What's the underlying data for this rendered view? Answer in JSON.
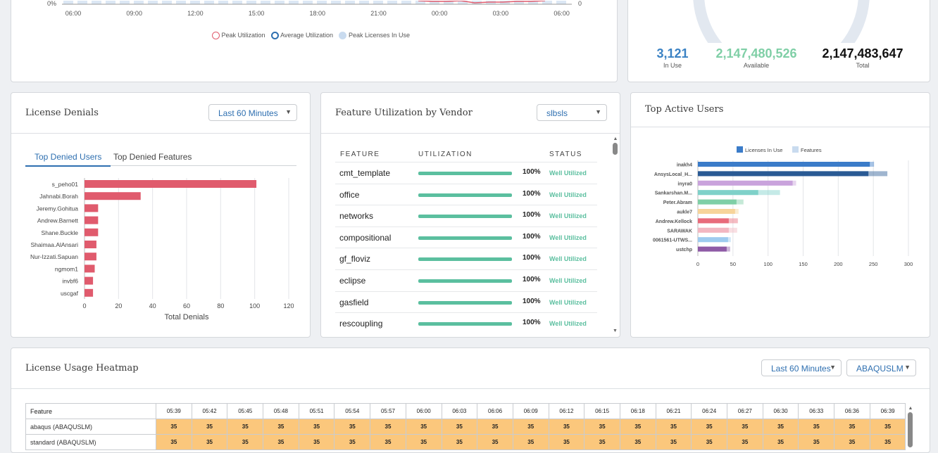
{
  "colors": {
    "accent": "#2e6fb0",
    "red": "#e05b6d",
    "green": "#5bbf9f",
    "orange": "#fbc77c",
    "light_blue": "#c9dbef"
  },
  "top_chart": {
    "y_tick": "0%",
    "y2_tick": "0",
    "x_ticks": [
      "06:00",
      "09:00",
      "12:00",
      "15:00",
      "18:00",
      "21:00",
      "00:00",
      "03:00",
      "06:00"
    ],
    "legend": [
      "Peak Utilization",
      "Average Utilization",
      "Peak Licenses In Use"
    ]
  },
  "summary": {
    "in_use_value": "3,121",
    "in_use_label": "In Use",
    "available_value": "2,147,480,526",
    "available_label": "Available",
    "total_value": "2,147,483,647",
    "total_label": "Total"
  },
  "denials": {
    "title": "License Denials",
    "range": "Last 60 Minutes",
    "tabs": [
      "Top Denied Users",
      "Top Denied Features"
    ],
    "xlabel": "Total Denials"
  },
  "vendor": {
    "title": "Feature Utilization by Vendor",
    "selected": "slbsls",
    "headers": {
      "feature": "FEATURE",
      "utilization": "UTILIZATION",
      "status": "STATUS"
    },
    "rows": [
      {
        "feature": "cmt_template",
        "pct": "100%",
        "status": "Well Utilized"
      },
      {
        "feature": "office",
        "pct": "100%",
        "status": "Well Utilized"
      },
      {
        "feature": "networks",
        "pct": "100%",
        "status": "Well Utilized"
      },
      {
        "feature": "compositional",
        "pct": "100%",
        "status": "Well Utilized"
      },
      {
        "feature": "gf_floviz",
        "pct": "100%",
        "status": "Well Utilized"
      },
      {
        "feature": "eclipse",
        "pct": "100%",
        "status": "Well Utilized"
      },
      {
        "feature": "gasfield",
        "pct": "100%",
        "status": "Well Utilized"
      },
      {
        "feature": "rescoupling",
        "pct": "100%",
        "status": "Well Utilized"
      }
    ]
  },
  "active_users": {
    "title": "Top Active Users"
  },
  "heatmap": {
    "title": "License Usage Heatmap",
    "range": "Last 60 Minutes",
    "vendor": "ABAQUSLM",
    "feature_header": "Feature",
    "times": [
      "05:39",
      "05:42",
      "05:45",
      "05:48",
      "05:51",
      "05:54",
      "05:57",
      "06:00",
      "06:03",
      "06:06",
      "06:09",
      "06:12",
      "06:15",
      "06:18",
      "06:21",
      "06:24",
      "06:27",
      "06:30",
      "06:33",
      "06:36",
      "06:39"
    ],
    "rows": [
      {
        "feature": "abaqus (ABAQUSLM)",
        "value": "35"
      },
      {
        "feature": "standard (ABAQUSLM)",
        "value": "35"
      }
    ]
  },
  "chart_data": [
    {
      "type": "bar",
      "orientation": "horizontal",
      "categories": [
        "s_peho01",
        "Jahnabi.Borah",
        "Jeremy.Gohitua",
        "Andrew.Barnett",
        "Shane.Buckle",
        "Shaimaa.AlAnsari",
        "Nur-Izzati.Sapuan",
        "ngmom1",
        "invbf6",
        "uscgaf"
      ],
      "values": [
        101,
        33,
        8,
        8,
        8,
        7,
        7,
        6,
        5,
        5
      ],
      "xlabel": "Total Denials",
      "xlim": [
        0,
        120
      ],
      "xticks": [
        0,
        20,
        40,
        60,
        80,
        100,
        120
      ],
      "grid": true
    },
    {
      "type": "bar",
      "orientation": "horizontal",
      "categories": [
        "inakh4",
        "AnsysLocal_H...",
        "inyra0",
        "Sankarshan.M...",
        "Peter.Abram",
        "aukle7",
        "Andrew.Kellock",
        "SARAWAK",
        "0061561-UTWS...",
        "ustchp"
      ],
      "series": [
        {
          "name": "Licenses In Use",
          "values": [
            245,
            243,
            135,
            86,
            55,
            53,
            44,
            44,
            43,
            41
          ]
        },
        {
          "name": "Features",
          "values": [
            251,
            270,
            140,
            117,
            65,
            58,
            57,
            56,
            47,
            46
          ]
        }
      ],
      "bar_colors": [
        "#3b7cc9",
        "#2a5a94",
        "#c9a3dc",
        "#7fd1c9",
        "#7fcfa6",
        "#f7d49a",
        "#e86b7b",
        "#f2b7c1",
        "#9ecbef",
        "#8e5aa6"
      ],
      "legend_position": "top",
      "xlim": [
        0,
        300
      ],
      "xticks": [
        0,
        50,
        100,
        150,
        200,
        250,
        300
      ],
      "grid": true
    }
  ]
}
